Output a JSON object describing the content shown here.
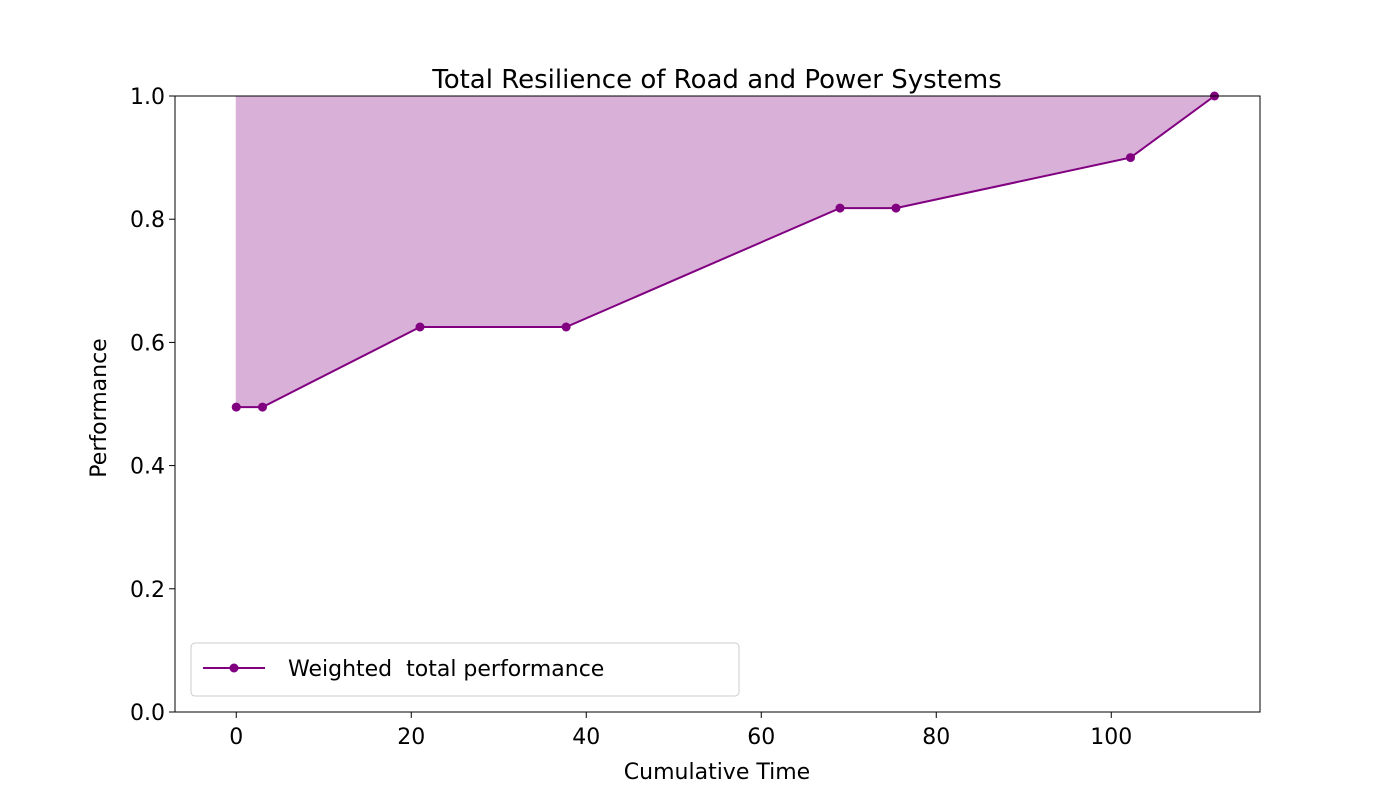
{
  "chart_data": {
    "type": "area",
    "title": "Total Resilience of Road and Power Systems",
    "xlabel": "Cumulative Time",
    "ylabel": "Performance",
    "xlim": [
      -7,
      117
    ],
    "ylim": [
      0.0,
      1.0
    ],
    "xticks": [
      0,
      20,
      40,
      60,
      80,
      100
    ],
    "xtick_labels": [
      "0",
      "20",
      "40",
      "60",
      "80",
      "100"
    ],
    "yticks": [
      0.0,
      0.2,
      0.4,
      0.6,
      0.8,
      1.0
    ],
    "ytick_labels": [
      "0.0",
      "0.2",
      "0.4",
      "0.6",
      "0.8",
      "1.0"
    ],
    "grid": false,
    "legend_position": "lower-left",
    "fill_between": {
      "upper": 1.0,
      "color": "#d8b0d8"
    },
    "series": [
      {
        "name": "Weighted  total performance",
        "color": "#800080",
        "marker": "circle",
        "x": [
          0,
          3,
          21,
          37.7,
          69,
          75.4,
          102.2,
          111.8
        ],
        "y": [
          0.495,
          0.495,
          0.625,
          0.625,
          0.818,
          0.818,
          0.9,
          1.0
        ]
      }
    ]
  }
}
